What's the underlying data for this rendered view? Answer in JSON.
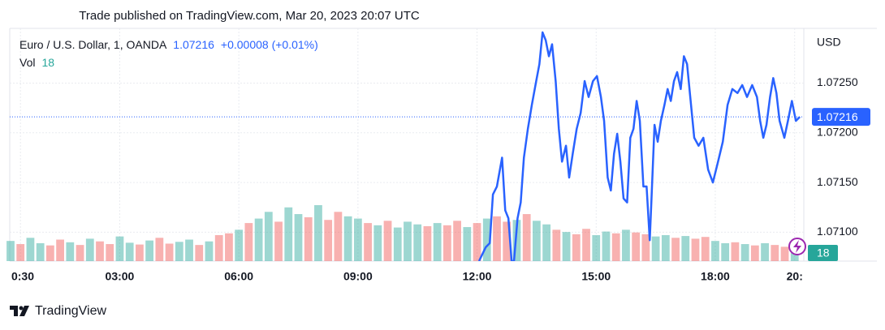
{
  "header": {
    "published": "Trade published on TradingView.com, Mar 20, 2023 20:07 UTC"
  },
  "chart_data": {
    "type": "line",
    "symbol": "Euro / U.S. Dollar, 1, OANDA",
    "change": "+0.00008 (+0.01%)",
    "volume_label": "Vol",
    "currency": "USD",
    "color": "#2962ff",
    "grid": true,
    "x": [
      12.05,
      12.22,
      12.32,
      12.4,
      12.5,
      12.63,
      12.71,
      12.79,
      12.87,
      12.93,
      13.02,
      13.1,
      13.18,
      13.28,
      13.38,
      13.49,
      13.57,
      13.65,
      13.73,
      13.81,
      13.89,
      13.98,
      14.06,
      14.14,
      14.24,
      14.32,
      14.41,
      14.51,
      14.61,
      14.71,
      14.81,
      14.92,
      15.02,
      15.12,
      15.2,
      15.29,
      15.37,
      15.45,
      15.53,
      15.61,
      15.69,
      15.78,
      15.86,
      15.94,
      16.02,
      16.1,
      16.19,
      16.27,
      16.35,
      16.39,
      16.47,
      16.55,
      16.63,
      16.72,
      16.8,
      16.88,
      16.96,
      17.04,
      17.13,
      17.21,
      17.29,
      17.37,
      17.47,
      17.58,
      17.7,
      17.82,
      17.94,
      18.07,
      18.19,
      18.31,
      18.43,
      18.56,
      18.68,
      18.8,
      18.93,
      19.05,
      19.13,
      19.21,
      19.29,
      19.38,
      19.46,
      19.54,
      19.62,
      19.74,
      19.83,
      19.93,
      20.03,
      20.13
    ],
    "values": [
      1.07071,
      1.07085,
      1.07089,
      1.07138,
      1.07146,
      1.07175,
      1.07122,
      1.07114,
      1.07071,
      1.07071,
      1.07114,
      1.0713,
      1.07175,
      1.07204,
      1.07228,
      1.07252,
      1.07269,
      1.07301,
      1.07293,
      1.07277,
      1.07289,
      1.07252,
      1.07204,
      1.07171,
      1.07187,
      1.07155,
      1.07179,
      1.07204,
      1.0722,
      1.07252,
      1.07236,
      1.07252,
      1.07257,
      1.07236,
      1.07212,
      1.07155,
      1.07142,
      1.07179,
      1.07199,
      1.07171,
      1.07134,
      1.0713,
      1.07195,
      1.07204,
      1.07232,
      1.07212,
      1.07146,
      1.07146,
      1.07092,
      1.0713,
      1.07208,
      1.07191,
      1.07212,
      1.07228,
      1.07244,
      1.07232,
      1.07252,
      1.07261,
      1.07244,
      1.07277,
      1.07269,
      1.07236,
      1.07195,
      1.07187,
      1.07195,
      1.07163,
      1.0715,
      1.07171,
      1.07191,
      1.07228,
      1.07244,
      1.0724,
      1.07248,
      1.07236,
      1.07248,
      1.07236,
      1.07212,
      1.07195,
      1.07208,
      1.07236,
      1.07255,
      1.0724,
      1.07212,
      1.07195,
      1.07212,
      1.07232,
      1.07212,
      1.07216
    ],
    "xlim": [
      0.23,
      20.23
    ],
    "xticks": [
      {
        "value": 0.5,
        "label": "0:30"
      },
      {
        "value": 3,
        "label": "03:00"
      },
      {
        "value": 6,
        "label": "06:00"
      },
      {
        "value": 9,
        "label": "09:00"
      },
      {
        "value": 12,
        "label": "12:00"
      },
      {
        "value": 15,
        "label": "15:00"
      },
      {
        "value": 18,
        "label": "18:00"
      },
      {
        "value": 20,
        "label": "20:"
      }
    ],
    "ylim": [
      1.07071,
      1.07305
    ],
    "yticks": [
      {
        "value": 1.071,
        "label": "1.07100"
      },
      {
        "value": 1.0715,
        "label": "1.07150"
      },
      {
        "value": 1.072,
        "label": "1.07200"
      },
      {
        "value": 1.0725,
        "label": "1.07250"
      }
    ],
    "volume": {
      "ylim": [
        0,
        520
      ],
      "x": [
        0.25,
        0.5,
        0.75,
        1,
        1.25,
        1.5,
        1.75,
        2,
        2.25,
        2.5,
        2.75,
        3,
        3.25,
        3.5,
        3.75,
        4,
        4.25,
        4.5,
        4.75,
        5,
        5.25,
        5.5,
        5.75,
        6,
        6.25,
        6.5,
        6.75,
        7,
        7.25,
        7.5,
        7.75,
        8,
        8.25,
        8.5,
        8.75,
        9,
        9.25,
        9.5,
        9.75,
        10,
        10.25,
        10.5,
        10.75,
        11,
        11.25,
        11.5,
        11.75,
        12,
        12.25,
        12.5,
        12.75,
        13,
        13.25,
        13.5,
        13.75,
        14,
        14.25,
        14.5,
        14.75,
        15,
        15.25,
        15.5,
        15.75,
        16,
        16.25,
        16.5,
        16.75,
        17,
        17.25,
        17.5,
        17.75,
        18,
        18.25,
        18.5,
        18.75,
        19,
        19.25,
        19.5,
        19.75,
        20
      ],
      "values": [
        45,
        38,
        52,
        40,
        35,
        48,
        42,
        36,
        50,
        44,
        38,
        55,
        41,
        37,
        46,
        52,
        39,
        43,
        48,
        36,
        44,
        58,
        62,
        70,
        85,
        95,
        110,
        88,
        120,
        105,
        98,
        125,
        92,
        110,
        100,
        95,
        85,
        80,
        90,
        75,
        88,
        82,
        78,
        85,
        80,
        90,
        76,
        85,
        95,
        100,
        88,
        92,
        105,
        90,
        82,
        70,
        65,
        60,
        72,
        58,
        66,
        62,
        70,
        64,
        60,
        55,
        58,
        52,
        56,
        50,
        54,
        45,
        40,
        42,
        38,
        35,
        40,
        36,
        32,
        18
      ],
      "colors": [
        "#26a69a",
        "#ef5350",
        "#26a69a",
        "#26a69a",
        "#ef5350",
        "#ef5350",
        "#26a69a",
        "#ef5350",
        "#26a69a",
        "#ef5350",
        "#ef5350",
        "#26a69a",
        "#26a69a",
        "#ef5350",
        "#26a69a",
        "#ef5350",
        "#ef5350",
        "#26a69a",
        "#26a69a",
        "#ef5350",
        "#26a69a",
        "#ef5350",
        "#ef5350",
        "#26a69a",
        "#ef5350",
        "#26a69a",
        "#26a69a",
        "#ef5350",
        "#26a69a",
        "#26a69a",
        "#ef5350",
        "#26a69a",
        "#ef5350",
        "#ef5350",
        "#26a69a",
        "#26a69a",
        "#ef5350",
        "#26a69a",
        "#ef5350",
        "#26a69a",
        "#26a69a",
        "#26a69a",
        "#ef5350",
        "#26a69a",
        "#ef5350",
        "#ef5350",
        "#26a69a",
        "#ef5350",
        "#26a69a",
        "#ef5350",
        "#ef5350",
        "#26a69a",
        "#ef5350",
        "#26a69a",
        "#26a69a",
        "#ef5350",
        "#26a69a",
        "#ef5350",
        "#ef5350",
        "#26a69a",
        "#26a69a",
        "#ef5350",
        "#26a69a",
        "#ef5350",
        "#ef5350",
        "#26a69a",
        "#26a69a",
        "#ef5350",
        "#26a69a",
        "#ef5350",
        "#ef5350",
        "#26a69a",
        "#26a69a",
        "#ef5350",
        "#26a69a",
        "#ef5350",
        "#26a69a",
        "#ef5350",
        "#ef5350",
        "#26a69a"
      ]
    }
  },
  "footer": {
    "brand": "TradingView"
  }
}
